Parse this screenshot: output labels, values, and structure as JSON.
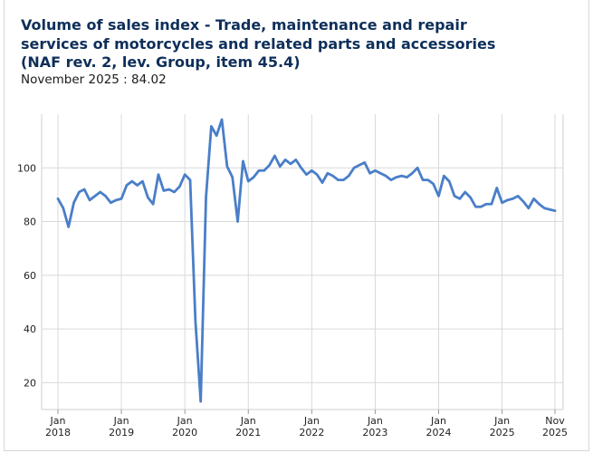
{
  "header": {
    "title": "Volume of sales index - Trade, maintenance and repair services of motorcycles and related parts and accessories (NAF rev. 2, lev. Group, item 45.4)",
    "latest_label": "November 2025",
    "latest_sep": " : ",
    "latest_value": "84.02"
  },
  "chart_data": {
    "type": "line",
    "title": "Volume of sales index - Trade, maintenance and repair services of motorcycles and related parts and accessories (NAF rev. 2, lev. Group, item 45.4)",
    "xlabel": "",
    "ylabel": "",
    "ylim": [
      10,
      120
    ],
    "yticks": [
      20,
      40,
      60,
      80,
      100
    ],
    "grid": true,
    "x_start": "Jan 2018",
    "x_end": "Nov 2025",
    "xticks": [
      {
        "index": 0,
        "label": [
          "Jan",
          "2018"
        ]
      },
      {
        "index": 12,
        "label": [
          "Jan",
          "2019"
        ]
      },
      {
        "index": 24,
        "label": [
          "Jan",
          "2020"
        ]
      },
      {
        "index": 36,
        "label": [
          "Jan",
          "2021"
        ]
      },
      {
        "index": 48,
        "label": [
          "Jan",
          "2022"
        ]
      },
      {
        "index": 60,
        "label": [
          "Jan",
          "2023"
        ]
      },
      {
        "index": 72,
        "label": [
          "Jan",
          "2024"
        ]
      },
      {
        "index": 84,
        "label": [
          "Jan",
          "2025"
        ]
      },
      {
        "index": 94,
        "label": [
          "Nov",
          "2025"
        ]
      }
    ],
    "series": [
      {
        "name": "Volume of sales index",
        "color": "#4a7ec8",
        "values": [
          88.5,
          85,
          78,
          87,
          91,
          92,
          88,
          89.5,
          91,
          89.5,
          87,
          88,
          88.5,
          93.5,
          95,
          93.5,
          95,
          89,
          86.5,
          97.5,
          91.5,
          92,
          91,
          93,
          97.5,
          95.5,
          43,
          13,
          89,
          115.5,
          112,
          118,
          100.5,
          96.5,
          80,
          102.5,
          95,
          96.5,
          99,
          99,
          101,
          104.5,
          100.5,
          103,
          101.5,
          103,
          100,
          97.5,
          99,
          97.5,
          94.5,
          98,
          97,
          95.5,
          95.5,
          97,
          100,
          101,
          102,
          98,
          99,
          98,
          97,
          95.5,
          96.5,
          97,
          96.5,
          98,
          100,
          95.5,
          95.5,
          94,
          89.5,
          97,
          95,
          89.5,
          88.5,
          91,
          89,
          85.5,
          85.5,
          86.5,
          86.5,
          92.5,
          87,
          88,
          88.5,
          89.5,
          87.5,
          85,
          88.5,
          86.5,
          85,
          84.5,
          84.02
        ]
      }
    ]
  }
}
